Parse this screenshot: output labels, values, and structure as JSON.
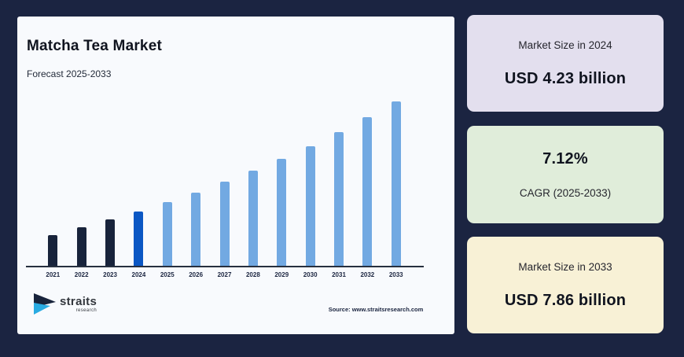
{
  "title": "Matcha Tea Market",
  "subtitle": "Forecast 2025-2033",
  "source": "Source: www.straitsresearch.com",
  "logo": {
    "name": "straits",
    "tagline": "research"
  },
  "colors": {
    "page_bg": "#1B2441",
    "panel_bg": "#F8FAFD",
    "bar_historical": "#18233B",
    "bar_current": "#0B57C4",
    "bar_forecast": "#72A9E2",
    "axis": "#27303F",
    "logo_cyan": "#29ABE2",
    "text_dark": "#10141F"
  },
  "chart_data": {
    "type": "bar",
    "title": "Matcha Tea Market",
    "subtitle": "Forecast 2025-2033",
    "unit": "USD billion",
    "categories": [
      "2021",
      "2022",
      "2023",
      "2024",
      "2025",
      "2026",
      "2027",
      "2028",
      "2029",
      "2030",
      "2031",
      "2032",
      "2033"
    ],
    "values": [
      3.44,
      3.69,
      3.95,
      4.23,
      4.53,
      4.85,
      5.2,
      5.57,
      5.96,
      6.39,
      6.84,
      7.33,
      7.86
    ],
    "series_roles": [
      "historical",
      "historical",
      "historical",
      "current",
      "forecast",
      "forecast",
      "forecast",
      "forecast",
      "forecast",
      "forecast",
      "forecast",
      "forecast",
      "forecast"
    ],
    "labeled_points": {
      "2024": 4.23,
      "2033": 7.86
    },
    "cagr_pct": 7.12,
    "ylim": [
      2.4,
      8.2
    ],
    "grid": false,
    "legend": false,
    "y_axis_visible": false,
    "x_axis_labels_visible": true
  },
  "cards": [
    {
      "label": "Market Size in 2024",
      "value": "USD 4.23 billion",
      "bg": "#E3DFEE"
    },
    {
      "label": "CAGR (2025-2033)",
      "value": "7.12%",
      "bg": "#E0EDDA"
    },
    {
      "label": "Market Size in 2033",
      "value": "USD 7.86 billion",
      "bg": "#F8F1D6"
    }
  ]
}
